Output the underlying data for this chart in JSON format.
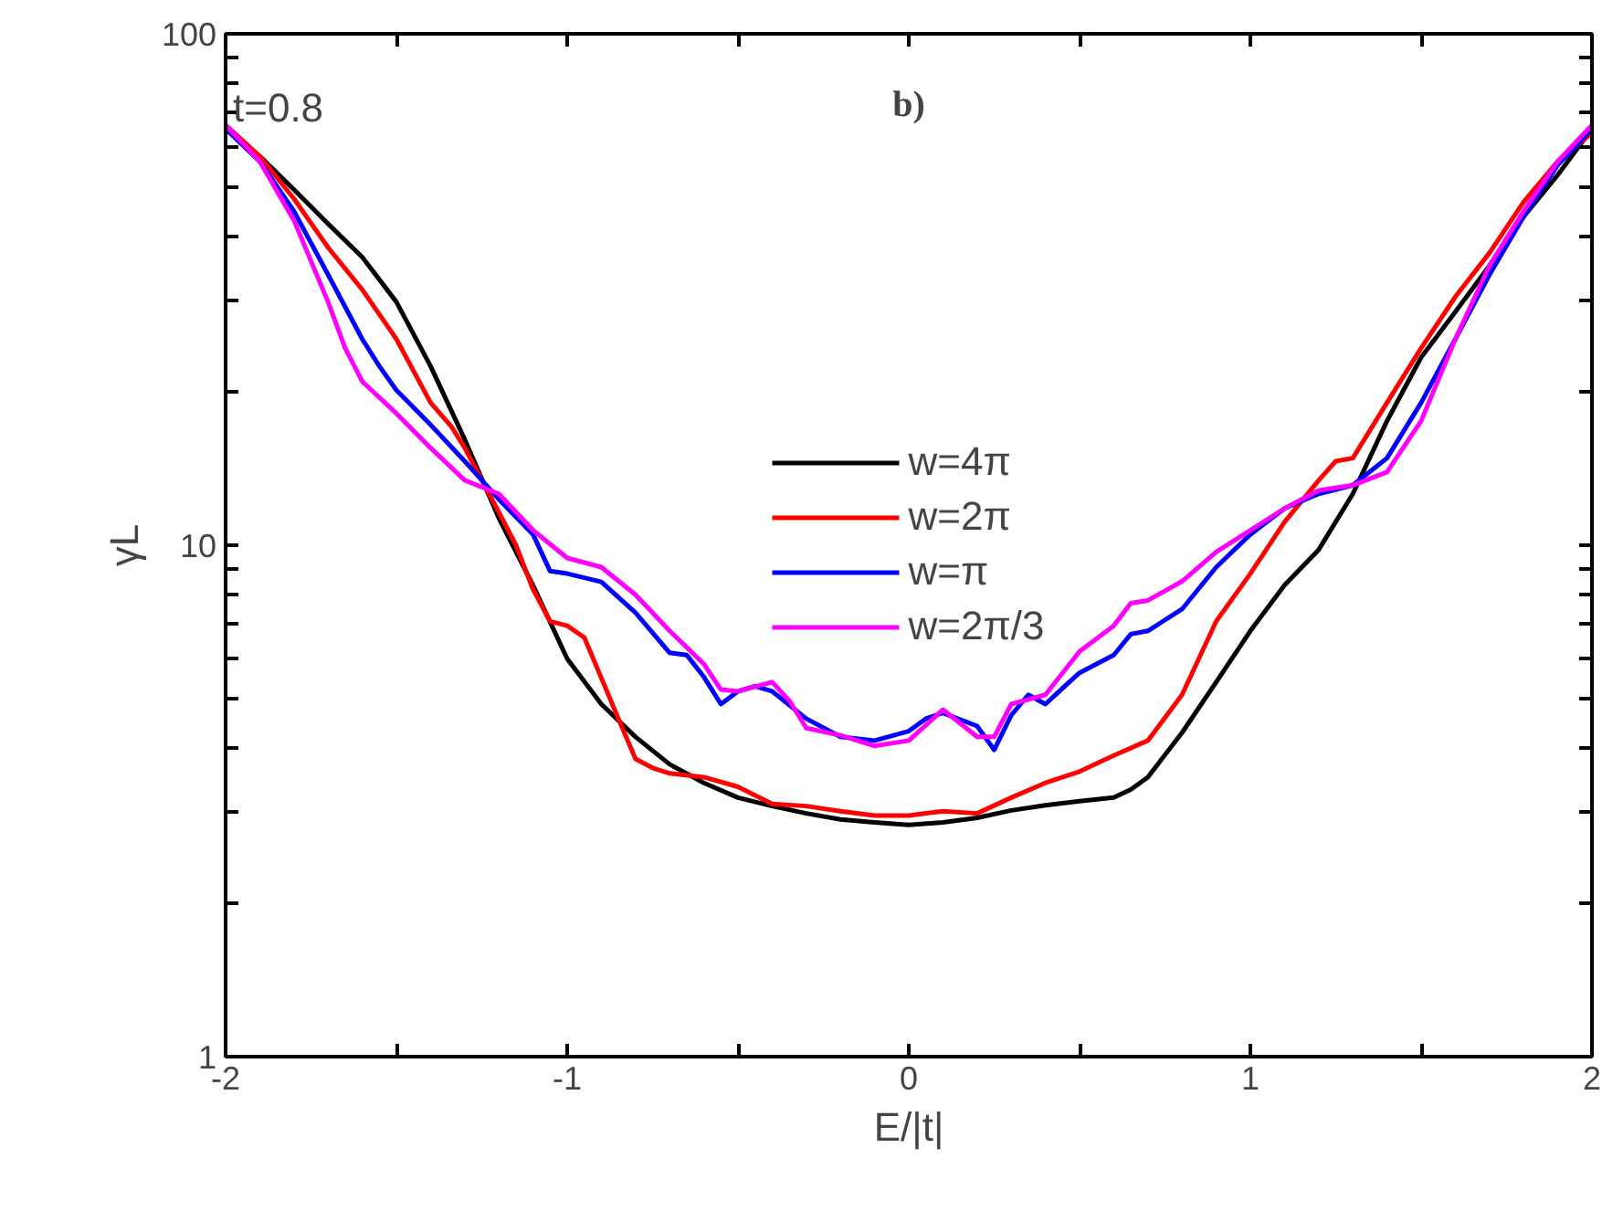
{
  "chart_data": {
    "type": "line",
    "xlabel": "E/|t|",
    "ylabel": "γL",
    "log": "y",
    "xlim": [
      -2,
      2
    ],
    "ylim": [
      1,
      100
    ],
    "xticks": [
      -2,
      {
        "value": -1.5,
        "label": null
      },
      -1,
      {
        "value": -0.5,
        "label": null
      },
      0,
      {
        "value": 0.5,
        "label": null
      },
      1,
      {
        "value": 1.5,
        "label": null
      },
      2
    ],
    "yticks": [
      1,
      {
        "value": 2,
        "label": null
      },
      {
        "value": 3,
        "label": null
      },
      {
        "value": 4,
        "label": null
      },
      {
        "value": 5,
        "label": null
      },
      {
        "value": 6,
        "label": null
      },
      {
        "value": 7,
        "label": null
      },
      {
        "value": 8,
        "label": null
      },
      {
        "value": 9,
        "label": null
      },
      10,
      {
        "value": 20,
        "label": null
      },
      {
        "value": 30,
        "label": null
      },
      {
        "value": 40,
        "label": null
      },
      {
        "value": 50,
        "label": null
      },
      {
        "value": 60,
        "label": null
      },
      {
        "value": 70,
        "label": null
      },
      {
        "value": 80,
        "label": null
      },
      {
        "value": 90,
        "label": null
      },
      100
    ],
    "grid": false,
    "legend": "center",
    "marker": "none",
    "line_style": "solid",
    "annotations": [
      "t=0.8",
      "b)"
    ],
    "series": [
      {
        "name": "w=4π",
        "color": "#000000",
        "x": [
          -2,
          -1.9,
          -1.8,
          -1.7,
          -1.6,
          -1.5,
          -1.4,
          -1.3,
          -1.2,
          -1.1,
          -1.0,
          -0.9,
          -0.8,
          -0.7,
          -0.6,
          -0.5,
          -0.4,
          -0.3,
          -0.2,
          -0.1,
          0,
          0.1,
          0.2,
          0.3,
          0.4,
          0.5,
          0.6,
          0.65,
          0.7,
          0.8,
          0.9,
          1.0,
          1.1,
          1.2,
          1.3,
          1.4,
          1.5,
          1.6,
          1.7,
          1.8,
          1.9,
          2
        ],
        "values": [
          65.2,
          57.6,
          49.6,
          42.5,
          36.6,
          29.9,
          22.4,
          16.1,
          11.3,
          8.35,
          6.0,
          4.89,
          4.22,
          3.73,
          3.43,
          3.21,
          3.09,
          2.99,
          2.91,
          2.87,
          2.84,
          2.87,
          2.93,
          3.03,
          3.1,
          3.16,
          3.21,
          3.33,
          3.52,
          4.3,
          5.4,
          6.8,
          8.35,
          9.8,
          12.6,
          17.5,
          23.3,
          28.6,
          35.2,
          43.9,
          53,
          65.2
        ]
      },
      {
        "name": "w=2π",
        "color": "#ff0000",
        "x": [
          -2,
          -1.9,
          -1.8,
          -1.7,
          -1.6,
          -1.5,
          -1.4,
          -1.34,
          -1.3,
          -1.2,
          -1.15,
          -1.1,
          -1.05,
          -1.0,
          -0.95,
          -0.9,
          -0.85,
          -0.8,
          -0.75,
          -0.7,
          -0.6,
          -0.5,
          -0.4,
          -0.3,
          -0.2,
          -0.1,
          0,
          0.1,
          0.2,
          0.3,
          0.4,
          0.5,
          0.6,
          0.7,
          0.8,
          0.9,
          1.0,
          1.1,
          1.2,
          1.25,
          1.3,
          1.4,
          1.5,
          1.6,
          1.7,
          1.8,
          1.9,
          2
        ],
        "values": [
          66.3,
          57.6,
          47.6,
          38.2,
          31.6,
          25.3,
          19.0,
          17.1,
          15.5,
          11.6,
          10,
          8.2,
          7.1,
          6.96,
          6.6,
          5.5,
          4.58,
          3.82,
          3.67,
          3.58,
          3.52,
          3.37,
          3.12,
          3.09,
          3.02,
          2.96,
          2.96,
          3.02,
          2.99,
          3.21,
          3.43,
          3.61,
          3.88,
          4.15,
          5.1,
          7.1,
          8.8,
          11.1,
          13.4,
          14.6,
          14.8,
          19,
          24.3,
          30.6,
          37.3,
          46.9,
          56.3,
          64
        ]
      },
      {
        "name": "w=π",
        "color": "#0000ff",
        "x": [
          -2,
          -1.9,
          -1.8,
          -1.7,
          -1.6,
          -1.55,
          -1.5,
          -1.4,
          -1.3,
          -1.2,
          -1.1,
          -1.05,
          -1.0,
          -0.9,
          -0.8,
          -0.7,
          -0.65,
          -0.6,
          -0.55,
          -0.5,
          -0.45,
          -0.4,
          -0.3,
          -0.2,
          -0.1,
          0,
          0.05,
          0.1,
          0.2,
          0.25,
          0.3,
          0.35,
          0.4,
          0.45,
          0.5,
          0.6,
          0.65,
          0.7,
          0.8,
          0.9,
          1.0,
          1.1,
          1.2,
          1.3,
          1.4,
          1.5,
          1.6,
          1.7,
          1.8,
          1.9,
          2
        ],
        "values": [
          65.2,
          56.3,
          45.0,
          33.8,
          25.3,
          22.4,
          20.1,
          17.2,
          14.6,
          12.3,
          10.5,
          8.9,
          8.8,
          8.48,
          7.38,
          6.16,
          6.1,
          5.53,
          4.89,
          5.18,
          5.3,
          5.18,
          4.58,
          4.22,
          4.15,
          4.33,
          4.58,
          4.7,
          4.43,
          3.98,
          4.65,
          5.1,
          4.89,
          5.25,
          5.63,
          6.1,
          6.7,
          6.8,
          7.5,
          9.06,
          10.5,
          11.8,
          12.6,
          13.1,
          14.8,
          19.0,
          25.3,
          33.8,
          43.9,
          55.4,
          65.2
        ]
      },
      {
        "name": "w=2π/3",
        "color": "#ff00ff",
        "x": [
          -2,
          -1.9,
          -1.8,
          -1.7,
          -1.65,
          -1.6,
          -1.5,
          -1.4,
          -1.3,
          -1.2,
          -1.1,
          -1.0,
          -0.9,
          -0.8,
          -0.7,
          -0.6,
          -0.55,
          -0.5,
          -0.4,
          -0.35,
          -0.3,
          -0.2,
          -0.1,
          0,
          0.1,
          0.2,
          0.25,
          0.3,
          0.4,
          0.5,
          0.6,
          0.65,
          0.7,
          0.8,
          0.9,
          1.0,
          1.1,
          1.2,
          1.3,
          1.4,
          1.5,
          1.6,
          1.7,
          1.8,
          1.9,
          2
        ],
        "values": [
          66.3,
          56.3,
          43.2,
          29.9,
          24.3,
          20.9,
          18.1,
          15.5,
          13.4,
          12.6,
          10.7,
          9.44,
          9.06,
          8.0,
          6.8,
          5.86,
          5.22,
          5.18,
          5.4,
          4.97,
          4.39,
          4.25,
          4.05,
          4.15,
          4.77,
          4.22,
          4.22,
          4.89,
          5.1,
          6.2,
          6.96,
          7.7,
          7.8,
          8.5,
          9.7,
          10.7,
          11.8,
          12.8,
          13.1,
          13.9,
          17.5,
          25.3,
          35.2,
          45,
          56.3,
          66.3
        ]
      }
    ]
  }
}
